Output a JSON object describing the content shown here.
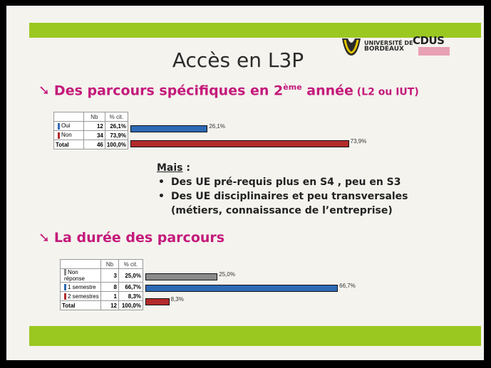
{
  "title": "Accès en L3P",
  "logos": {
    "universite_line1": "UNIVERSITÉ DE",
    "universite_line2": "BORDEAUX",
    "cdus": "CDUS"
  },
  "section1": {
    "heading_main": "Des parcours spécifiques en 2",
    "heading_sup": "ème",
    "heading_after": " année",
    "heading_small": " (L2 ou IUT)"
  },
  "section2": {
    "heading": "La durée des parcours"
  },
  "mais": {
    "label": "Mais",
    "colon": " :",
    "bullets": [
      "Des UE pré-requis  plus en S4 , peu en S3",
      "Des UE disciplinaires et peu transversales",
      "(métiers, connaissance de l’entreprise)"
    ]
  },
  "colors": {
    "accent_green": "#9bc820",
    "heading_magenta": "#c4197a",
    "blue": "#2d6ab5",
    "red": "#b22a2a",
    "gray": "#8a8a8a"
  },
  "chart_data": [
    {
      "type": "table",
      "columns": [
        "",
        "Nb",
        "% cit."
      ],
      "rows": [
        {
          "label": "Oui",
          "nb": "12",
          "pct": "26,1%",
          "value": 26.1,
          "bar_label": "26,1%",
          "color": "#2d6ab5"
        },
        {
          "label": "Non",
          "nb": "34",
          "pct": "73,9%",
          "value": 73.9,
          "bar_label": "73,9%",
          "color": "#b22a2a"
        }
      ],
      "total": {
        "label": "Total",
        "nb": "46",
        "pct": "100,0%"
      }
    },
    {
      "type": "table",
      "columns": [
        "",
        "Nb",
        "% cit."
      ],
      "rows": [
        {
          "label": "Non réponse",
          "nb": "3",
          "pct": "25,0%",
          "value": 25.0,
          "bar_label": "25,0%",
          "color": "#8a8a8a"
        },
        {
          "label": "1 semestre",
          "nb": "8",
          "pct": "66,7%",
          "value": 66.7,
          "bar_label": "66,7%",
          "color": "#2d6ab5"
        },
        {
          "label": "2 semestres",
          "nb": "1",
          "pct": "8,3%",
          "value": 8.3,
          "bar_label": "8,3%",
          "color": "#b22a2a"
        }
      ],
      "total": {
        "label": "Total",
        "nb": "12",
        "pct": "100,0%"
      }
    }
  ]
}
